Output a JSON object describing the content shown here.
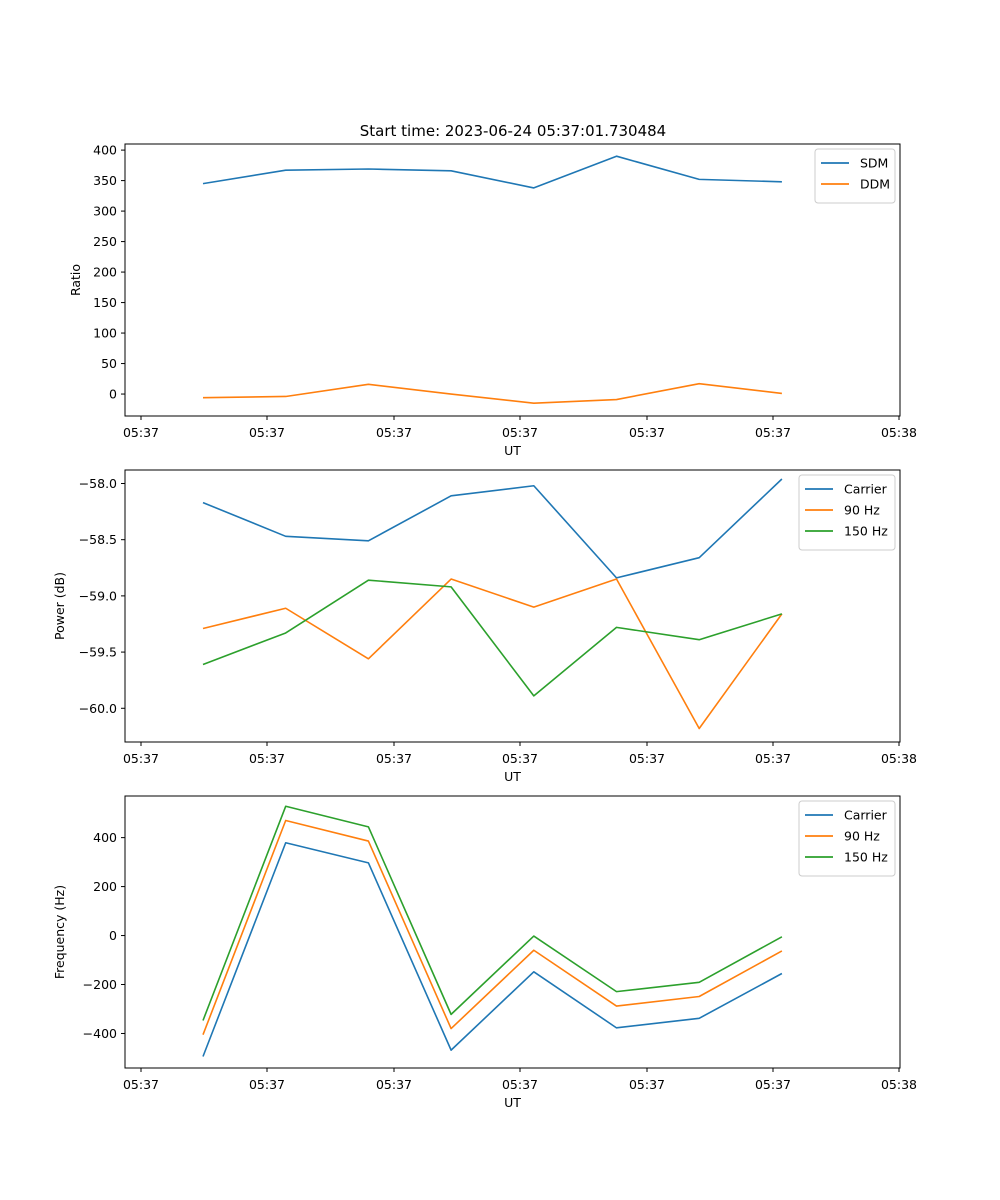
{
  "figure": {
    "title": "Start time: 2023-06-24 05:37:01.730484"
  },
  "chart_data": [
    {
      "type": "line",
      "xlabel": "UT",
      "ylabel": "Ratio",
      "x_tick_labels": [
        "05:37",
        "05:37",
        "05:37",
        "05:37",
        "05:37",
        "05:37",
        "05:38"
      ],
      "y_ticks": [
        0,
        50,
        100,
        150,
        200,
        250,
        300,
        350,
        400
      ],
      "y_tick_labels": [
        "0",
        "50",
        "100",
        "150",
        "200",
        "250",
        "300",
        "350",
        "400"
      ],
      "ylim": [
        -36,
        410
      ],
      "x_index": [
        1,
        2,
        3,
        4,
        5,
        6,
        7,
        8
      ],
      "series": [
        {
          "name": "SDM",
          "color": "#1f77b4",
          "values": [
            345,
            367,
            369,
            366,
            338,
            390,
            352,
            348
          ]
        },
        {
          "name": "DDM",
          "color": "#ff7f0e",
          "values": [
            -6,
            -4,
            16,
            0,
            -15,
            -9,
            17,
            1
          ]
        }
      ],
      "legend": "top-right",
      "grid": false
    },
    {
      "type": "line",
      "xlabel": "UT",
      "ylabel": "Power (dB)",
      "x_tick_labels": [
        "05:37",
        "05:37",
        "05:37",
        "05:37",
        "05:37",
        "05:37",
        "05:38"
      ],
      "y_ticks": [
        -60.0,
        -59.5,
        -59.0,
        -58.5,
        -58.0
      ],
      "y_tick_labels": [
        "−60.0",
        "−59.5",
        "−59.0",
        "−58.5",
        "−58.0"
      ],
      "ylim": [
        -60.3,
        -57.88
      ],
      "x_index": [
        1,
        2,
        3,
        4,
        5,
        6,
        7,
        8
      ],
      "series": [
        {
          "name": "Carrier",
          "color": "#1f77b4",
          "values": [
            -58.17,
            -58.47,
            -58.51,
            -58.11,
            -58.02,
            -58.84,
            -58.66,
            -57.96
          ]
        },
        {
          "name": "90 Hz",
          "color": "#ff7f0e",
          "values": [
            -59.29,
            -59.11,
            -59.56,
            -58.85,
            -59.1,
            -58.85,
            -60.18,
            -59.16
          ]
        },
        {
          "name": "150 Hz",
          "color": "#2ca02c",
          "values": [
            -59.61,
            -59.33,
            -58.86,
            -58.92,
            -59.89,
            -59.28,
            -59.39,
            -59.16
          ]
        }
      ],
      "legend": "top-right",
      "grid": false
    },
    {
      "type": "line",
      "xlabel": "UT",
      "ylabel": "Frequency (Hz)",
      "x_tick_labels": [
        "05:37",
        "05:37",
        "05:37",
        "05:37",
        "05:37",
        "05:37",
        "05:38"
      ],
      "y_ticks": [
        -400,
        -200,
        0,
        200,
        400
      ],
      "y_tick_labels": [
        "−400",
        "−200",
        "0",
        "200",
        "400"
      ],
      "ylim": [
        -541,
        570
      ],
      "x_index": [
        1,
        2,
        3,
        4,
        5,
        6,
        7,
        8
      ],
      "series": [
        {
          "name": "Carrier",
          "color": "#1f77b4",
          "values": [
            -494,
            379,
            297,
            -468,
            -148,
            -377,
            -338,
            -155
          ]
        },
        {
          "name": "90 Hz",
          "color": "#ff7f0e",
          "values": [
            -405,
            470,
            386,
            -380,
            -60,
            -288,
            -249,
            -63
          ]
        },
        {
          "name": "150 Hz",
          "color": "#2ca02c",
          "values": [
            -347,
            528,
            444,
            -322,
            -2,
            -229,
            -191,
            -5
          ]
        }
      ],
      "legend": "top-right",
      "grid": false
    }
  ]
}
